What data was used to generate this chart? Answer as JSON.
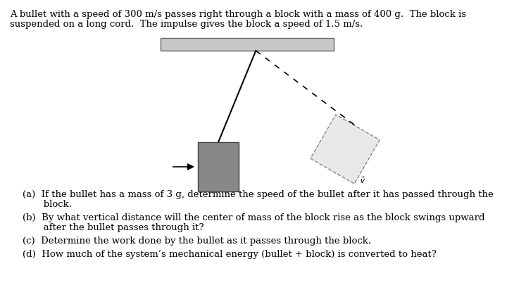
{
  "background_color": "#ffffff",
  "header_line1": "A bullet with a speed of 300 m/s passes right through a block with a mass of 400 g.  The block is",
  "header_line2": "suspended on a long cord.  The impulse gives the block a speed of 1.5 m/s.",
  "q_a_line1": "(a)  If the bullet has a mass of 3 g, determine the speed of the bullet after it has passed through the",
  "q_a_line2": "       block.",
  "q_b_line1": "(b)  By what vertical distance will the center of mass of the block rise as the block swings upward",
  "q_b_line2": "       after the bullet passes through it?",
  "q_c": "(c)  Determine the work done by the bullet as it passes through the block.",
  "q_d": "(d)  How much of the system’s mechanical energy (bullet + block) is converted to heat?",
  "ceiling_color": "#c8c8c8",
  "ceiling_edge_color": "#666666",
  "block_color": "#888888",
  "block_edge_color": "#444444",
  "swung_block_color": "#e8e8e8",
  "swung_block_edge_color": "#888888",
  "font_size": 9.5
}
